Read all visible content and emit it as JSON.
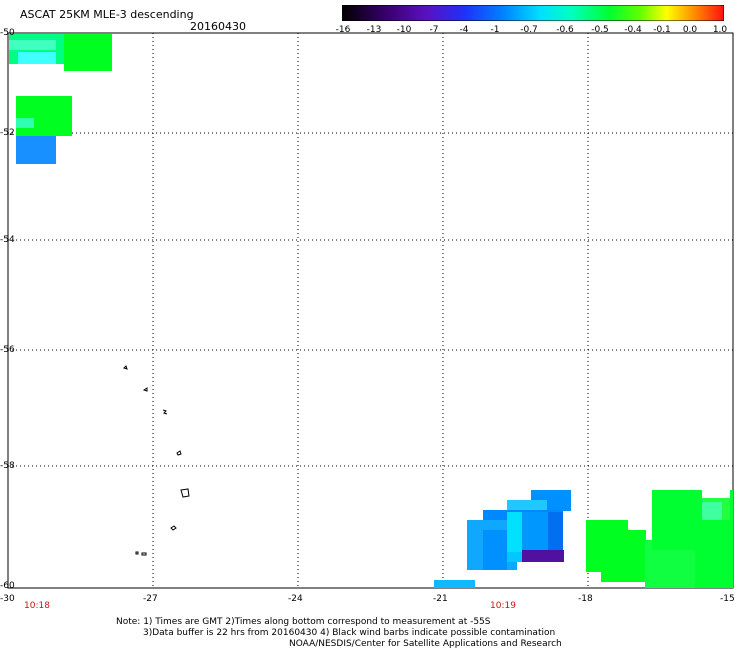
{
  "header": {
    "title": "ASCAT 25KM MLE-3 descending",
    "date": "20160430"
  },
  "colorbar": {
    "labels": [
      "-16",
      "-13",
      "-10",
      "-7",
      "-4",
      "-1",
      "-0.7",
      "-0.6",
      "-0.5",
      "-0.4",
      "-0.1",
      "0.0",
      "1.0"
    ],
    "colors": [
      "#000000",
      "#2a0040",
      "#5a00a0",
      "#3020f0",
      "#0060ff",
      "#00b0ff",
      "#00f0f0",
      "#00ffa0",
      "#00ff00",
      "#80ff00",
      "#ffff00",
      "#ffa000",
      "#ff5000",
      "#ff0000"
    ]
  },
  "axes": {
    "y_labels": [
      "-50",
      "-52",
      "-54",
      "-56",
      "-58",
      "-60"
    ],
    "x_labels": [
      "-30",
      "-27",
      "-24",
      "-21",
      "-18",
      "-15"
    ]
  },
  "times": [
    "10:18",
    "10:19"
  ],
  "notes": {
    "line1": "Note: 1) Times are GMT 2)Times along bottom correspond to measurement at -55S",
    "line2": "3)Data buffer is 22 hrs from 20160430 4) Black wind barbs indicate possible contamination",
    "line3": "NOAA/NESDIS/Center for Satellite Applications and Research"
  }
}
